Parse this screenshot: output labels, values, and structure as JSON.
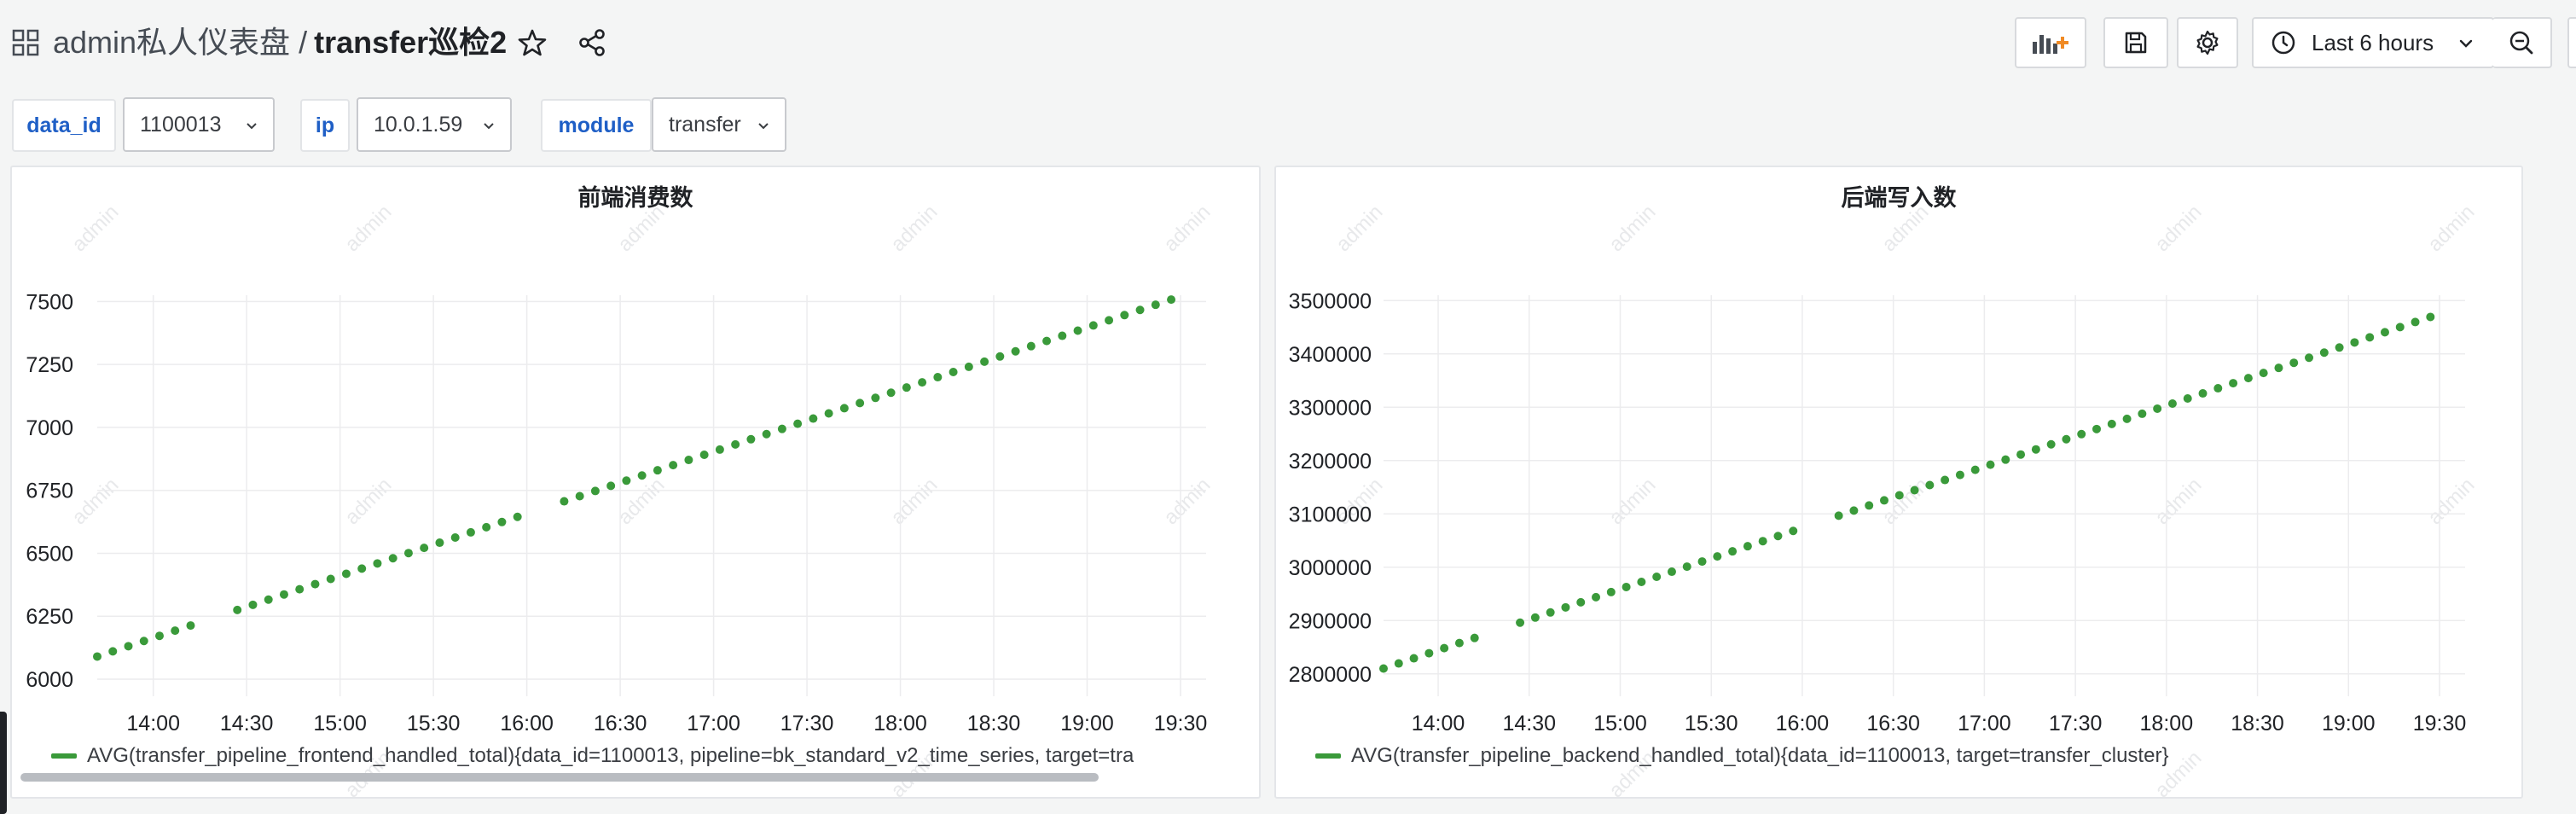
{
  "header": {
    "folder": "admin私人仪表盘",
    "separator": "/",
    "dashboard_title": "transfer巡检2",
    "time_range": "Last 6 hours"
  },
  "variables": [
    {
      "label": "data_id",
      "value": "1100013"
    },
    {
      "label": "ip",
      "value": "10.0.1.59"
    },
    {
      "label": "module",
      "value": "transfer"
    }
  ],
  "watermark": "admin",
  "colors": {
    "series": "#3a9a3a",
    "variable_label": "#1f5fc6"
  },
  "panels": [
    {
      "title": "前端消费数",
      "legend": "AVG(transfer_pipeline_frontend_handled_total){data_id=1100013, pipeline=bk_standard_v2_time_series, target=tra",
      "chart_data": {
        "type": "scatter",
        "title": "前端消费数",
        "x_ticks": [
          "14:00",
          "14:30",
          "15:00",
          "15:30",
          "16:00",
          "16:30",
          "17:00",
          "17:30",
          "18:00",
          "18:30",
          "19:00",
          "19:30"
        ],
        "y_ticks": [
          6000,
          6250,
          6500,
          6750,
          7000,
          7250,
          7500
        ],
        "x_range": [
          "13:42",
          "19:30"
        ],
        "ylim": [
          6000,
          7525
        ],
        "series": [
          {
            "name": "AVG(transfer_pipeline_frontend_handled_total){data_id=1100013, pipeline=bk_standard_v2_time_series, target=tra",
            "start": {
              "time": "13:42",
              "value": 6090
            },
            "end": {
              "time": "19:30",
              "value": 7520
            },
            "interval_minutes": 5,
            "gaps": [
              [
                "14:15",
                "14:25"
              ],
              [
                "16:00",
                "16:10"
              ]
            ]
          }
        ],
        "grid": true,
        "legend_position": "bottom"
      }
    },
    {
      "title": "后端写入数",
      "legend": "AVG(transfer_pipeline_backend_handled_total){data_id=1100013, target=transfer_cluster}",
      "chart_data": {
        "type": "scatter",
        "title": "后端写入数",
        "x_ticks": [
          "14:00",
          "14:30",
          "15:00",
          "15:30",
          "16:00",
          "16:30",
          "17:00",
          "17:30",
          "18:00",
          "18:30",
          "19:00",
          "19:30"
        ],
        "y_ticks": [
          2800000,
          2900000,
          3000000,
          3100000,
          3200000,
          3300000,
          3400000,
          3500000
        ],
        "x_range": [
          "13:42",
          "19:30"
        ],
        "ylim": [
          2790000,
          3510000
        ],
        "series": [
          {
            "name": "AVG(transfer_pipeline_backend_handled_total){data_id=1100013, target=transfer_cluster}",
            "start": {
              "time": "13:42",
              "value": 2810000
            },
            "end": {
              "time": "19:30",
              "value": 3475000
            },
            "interval_minutes": 5,
            "gaps": [
              [
                "14:15",
                "14:25"
              ],
              [
                "16:00",
                "16:10"
              ]
            ]
          }
        ],
        "grid": true,
        "legend_position": "bottom"
      }
    }
  ]
}
